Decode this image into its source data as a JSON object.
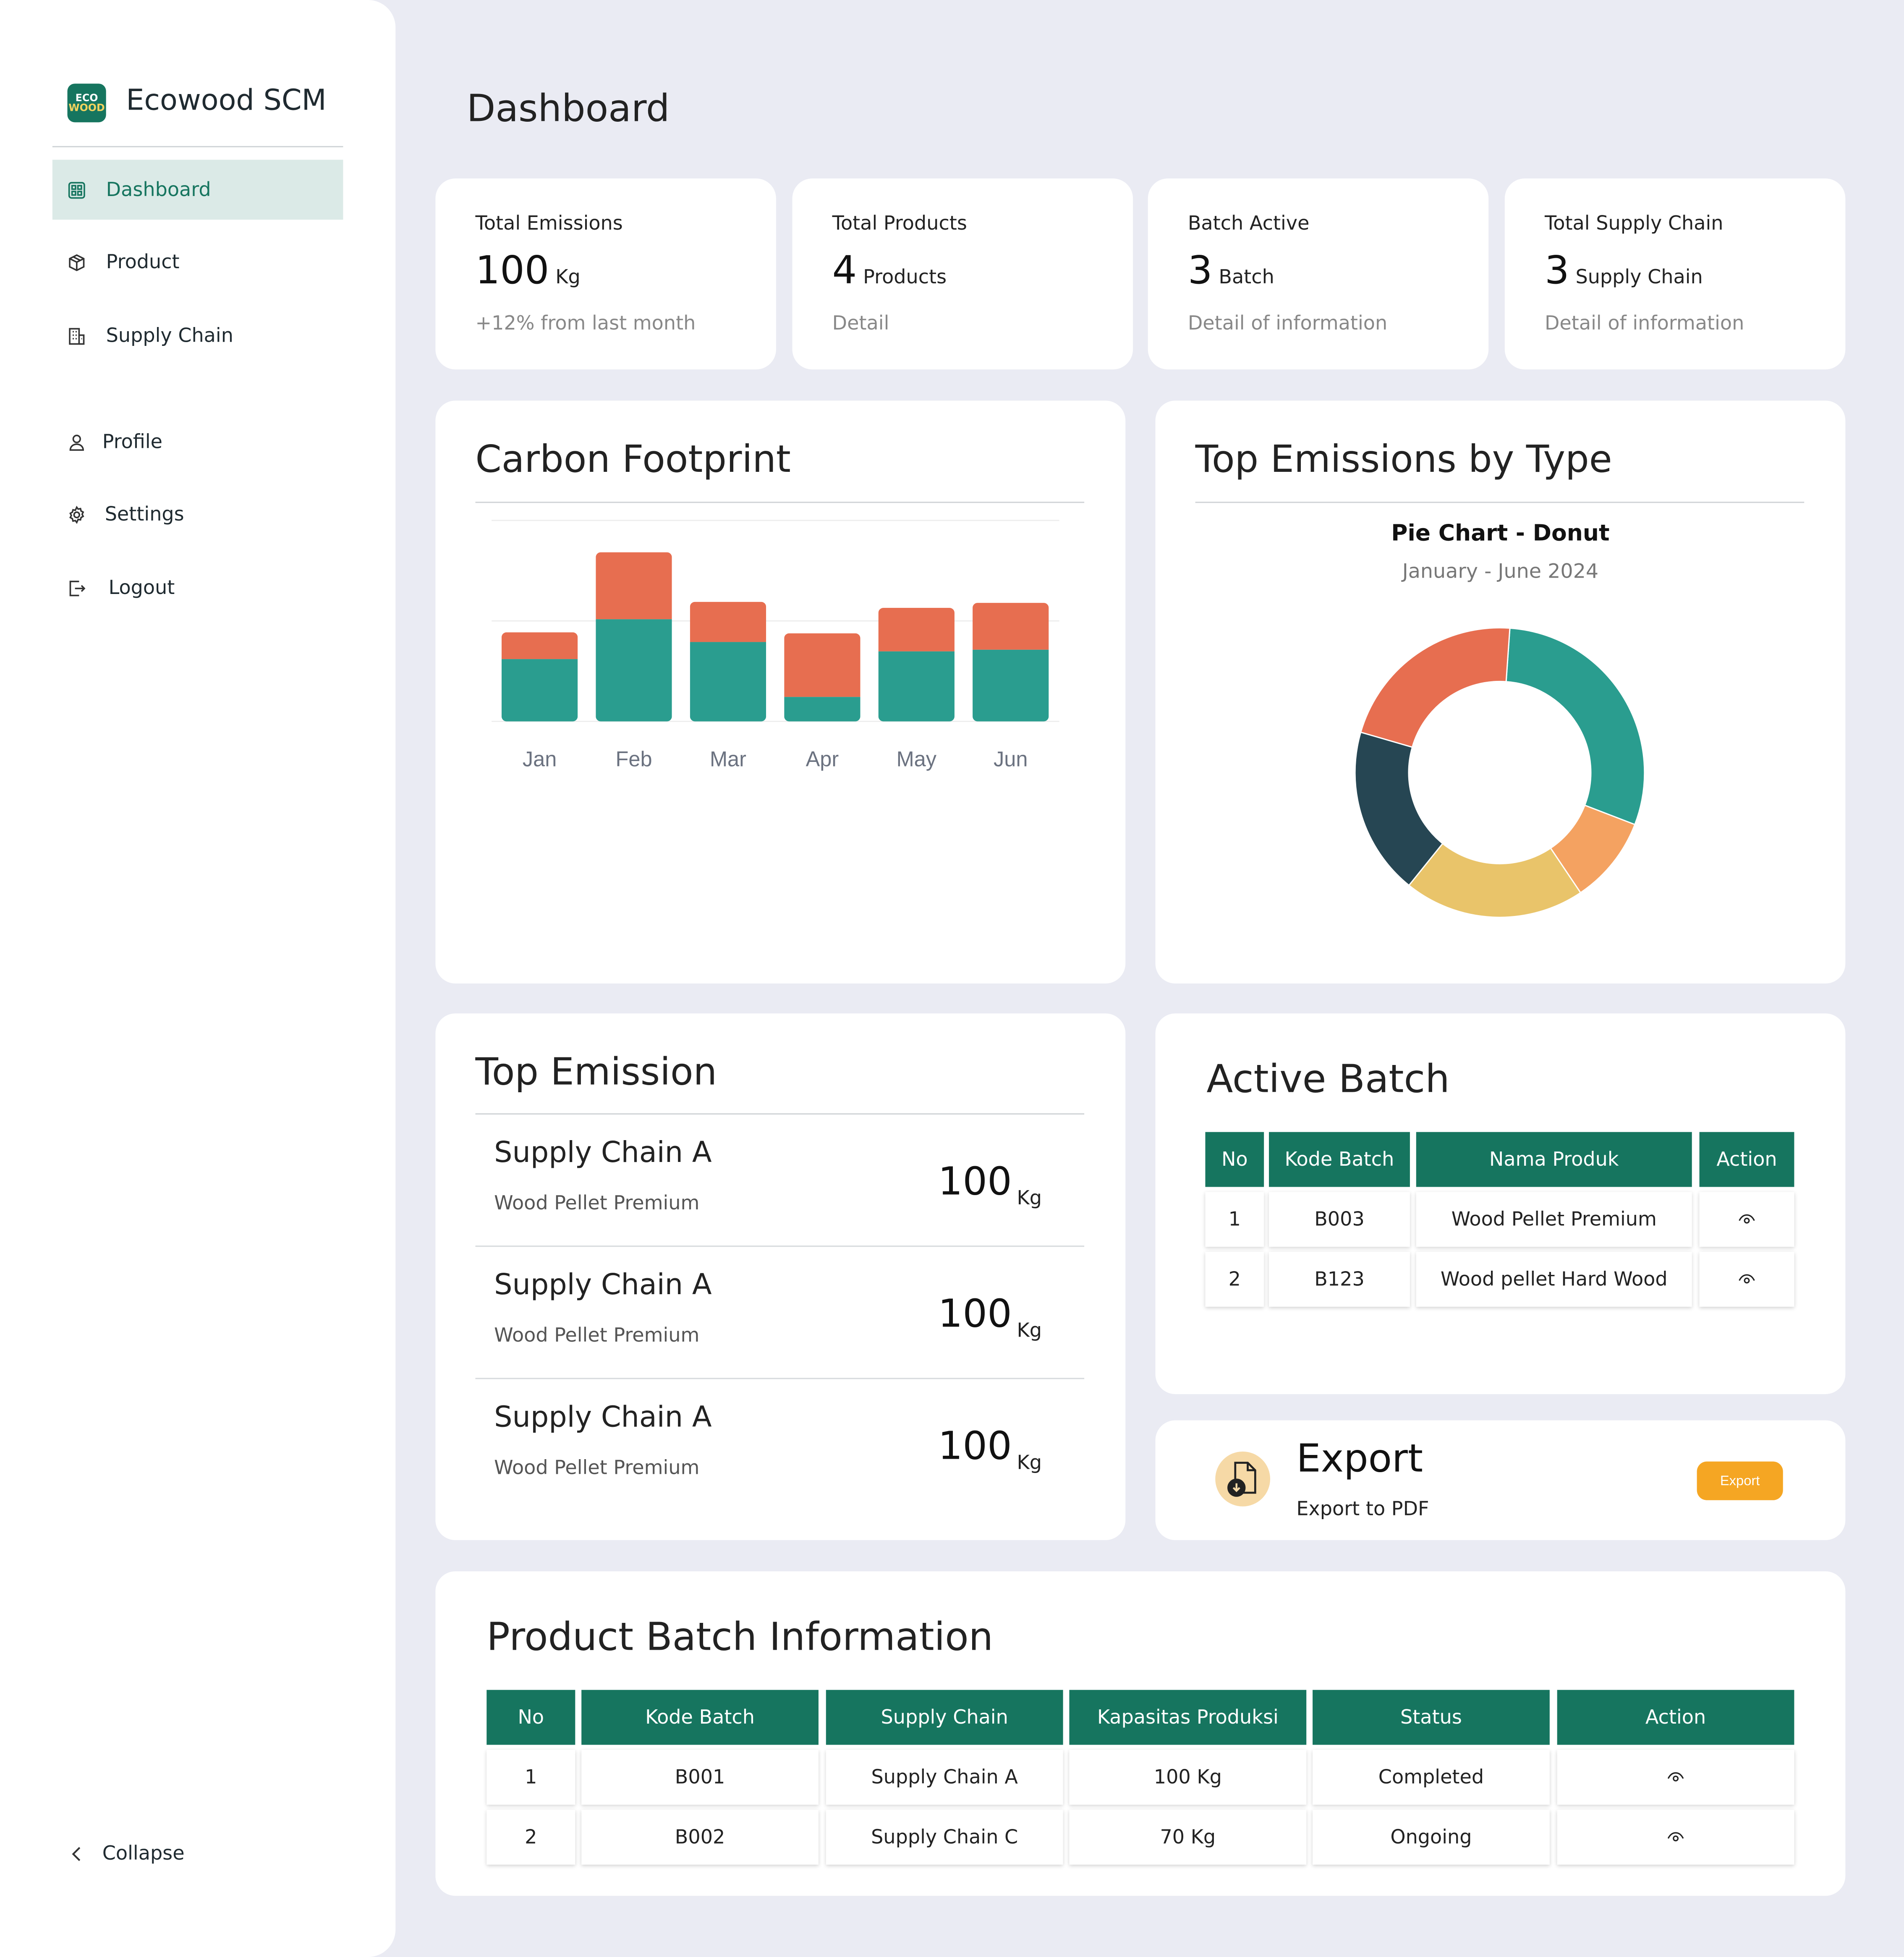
{
  "sidebar": {
    "logo_line1": "ECO",
    "logo_line2": "WOOD",
    "brand": "Ecowood SCM",
    "items": [
      {
        "label": "Dashboard",
        "icon": "grid-icon",
        "active": true
      },
      {
        "label": "Product",
        "icon": "box-icon"
      },
      {
        "label": "Supply Chain",
        "icon": "building-icon"
      },
      {
        "label": "Profile",
        "icon": "user-icon"
      },
      {
        "label": "Settings",
        "icon": "gear-icon"
      },
      {
        "label": "Logout",
        "icon": "logout-icon"
      }
    ],
    "collapse_label": "Collapse"
  },
  "page_title": "Dashboard",
  "stats": [
    {
      "label": "Total Emissions",
      "value": "100",
      "unit": "Kg",
      "sub": "+12% from last month"
    },
    {
      "label": "Total Products",
      "value": "4",
      "unit": "Products",
      "sub": "Detail"
    },
    {
      "label": "Batch Active",
      "value": "3",
      "unit": "Batch",
      "sub": "Detail of information"
    },
    {
      "label": "Total Supply Chain",
      "value": "3",
      "unit": "Supply Chain",
      "sub": "Detail of information"
    }
  ],
  "carbon_footprint": {
    "title": "Carbon Footprint"
  },
  "top_emissions_by_type": {
    "title": "Top Emissions by Type",
    "chart_title": "Pie Chart - Donut",
    "chart_subtitle": "January - June 2024"
  },
  "chart_data": [
    {
      "type": "bar",
      "stacked": true,
      "categories": [
        "Jan",
        "Feb",
        "Mar",
        "Apr",
        "May",
        "Jun"
      ],
      "series": [
        {
          "color": "#2a9d8f",
          "values": [
            186,
            305,
            237,
            73,
            209,
            214
          ]
        },
        {
          "color": "#e76e50",
          "values": [
            80,
            200,
            120,
            190,
            130,
            140
          ]
        }
      ],
      "ylim": [
        0,
        600
      ],
      "grid": true
    },
    {
      "type": "pie",
      "donut": true,
      "values": [
        275,
        90,
        187,
        173,
        200
      ],
      "colors": [
        "#2a9d8f",
        "#f4a261",
        "#e9c46a",
        "#264653",
        "#e76e50"
      ]
    }
  ],
  "top_emission": {
    "title": "Top Emission",
    "items": [
      {
        "name": "Supply Chain A",
        "product": "Wood Pellet Premium",
        "value": "100",
        "unit": "Kg"
      },
      {
        "name": "Supply Chain A",
        "product": "Wood Pellet Premium",
        "value": "100",
        "unit": "Kg"
      },
      {
        "name": "Supply Chain A",
        "product": "Wood Pellet Premium",
        "value": "100",
        "unit": "Kg"
      }
    ]
  },
  "active_batch": {
    "title": "Active Batch",
    "headers": [
      "No",
      "Kode Batch",
      "Nama Produk",
      "Action"
    ],
    "rows": [
      [
        "1",
        "B003",
        "Wood Pellet Premium"
      ],
      [
        "2",
        "B123",
        "Wood pellet Hard Wood"
      ]
    ]
  },
  "export": {
    "title": "Export",
    "subtitle": "Export to PDF",
    "button": "Export"
  },
  "product_batch": {
    "title": "Product Batch Information",
    "headers": [
      "No",
      "Kode Batch",
      "Supply Chain",
      "Kapasitas Produksi",
      "Status",
      "Action"
    ],
    "rows": [
      [
        "1",
        "B001",
        "Supply Chain A",
        "100 Kg",
        "Completed"
      ],
      [
        "2",
        "B002",
        "Supply Chain C",
        "70 Kg",
        "Ongoing"
      ]
    ]
  }
}
